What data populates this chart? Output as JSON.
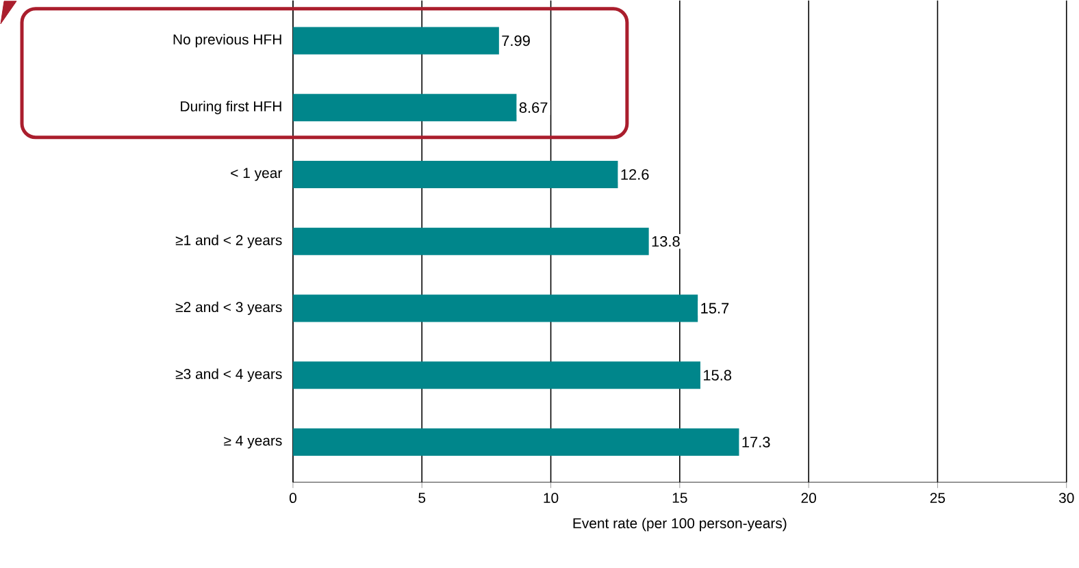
{
  "chart_data": {
    "type": "bar",
    "orientation": "horizontal",
    "xlabel": "Event rate (per 100 person-years)",
    "categories": [
      "No previous HFH",
      "During first HFH",
      "< 1 year",
      "≥1 and < 2 years",
      "≥2 and < 3 years",
      "≥3 and < 4 years",
      "≥ 4 years"
    ],
    "values": [
      7.99,
      8.67,
      12.6,
      13.8,
      15.7,
      15.8,
      17.3
    ],
    "color": "#00868b",
    "xlim": [
      0,
      30
    ],
    "xticks": [
      0,
      5,
      10,
      15,
      20,
      25,
      30
    ],
    "grid": "x",
    "data_labels": true
  }
}
